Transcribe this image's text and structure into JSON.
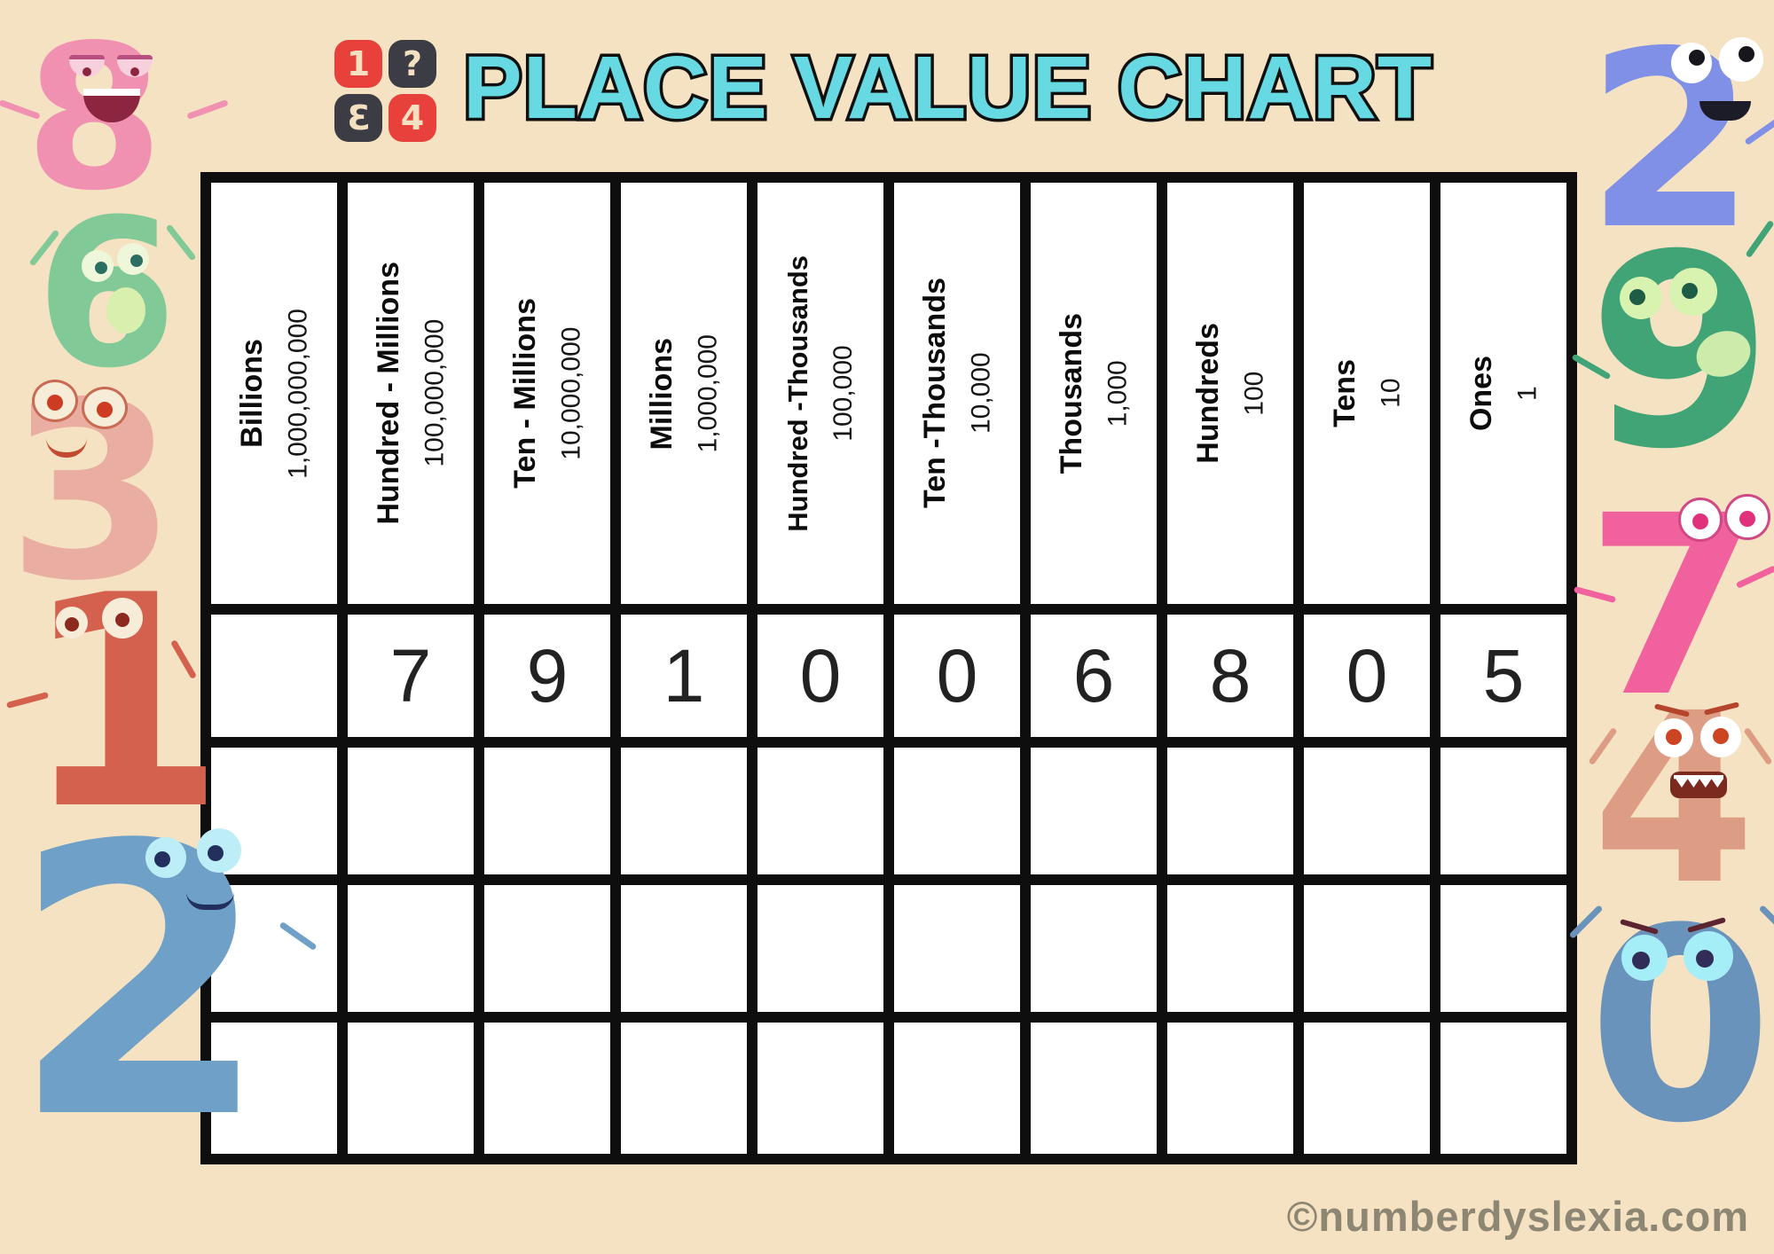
{
  "title": "PLACE VALUE CHART",
  "title_color": "#67d9e3",
  "background_color": "#f4e2c2",
  "logo": {
    "tiles": [
      {
        "char": "1",
        "color": "#e8413c"
      },
      {
        "char": "?",
        "color": "#3c3c44"
      },
      {
        "char": "3",
        "color": "#3c3c44",
        "mirrored": true
      },
      {
        "char": "4",
        "color": "#e8413c"
      }
    ]
  },
  "table": {
    "columns": [
      {
        "name": "Billions",
        "value": "1,000,000,000"
      },
      {
        "name": "Hundred - Millions",
        "value": "100,000,000"
      },
      {
        "name": "Ten - Millions",
        "value": "10,000,000"
      },
      {
        "name": "Millions",
        "value": "1,000,000"
      },
      {
        "name": "Hundred -Thousands",
        "value": "100,000"
      },
      {
        "name": "Ten -Thousands",
        "value": "10,000"
      },
      {
        "name": "Thousands",
        "value": "1,000"
      },
      {
        "name": "Hundreds",
        "value": "100"
      },
      {
        "name": "Tens",
        "value": "10"
      },
      {
        "name": "Ones",
        "value": "1"
      }
    ],
    "digits": [
      "",
      "7",
      "9",
      "1",
      "0",
      "0",
      "6",
      "8",
      "0",
      "5"
    ],
    "empty_row_count": 3
  },
  "decorations": {
    "left": [
      {
        "digit": "8",
        "color": "#f191b1"
      },
      {
        "digit": "6",
        "color": "#82c998"
      },
      {
        "digit": "3",
        "color": "#e9aea1"
      },
      {
        "digit": "1",
        "color": "#d4604e"
      },
      {
        "digit": "2",
        "color": "#6fa0c8"
      }
    ],
    "right": [
      {
        "digit": "2",
        "color": "#8090e6"
      },
      {
        "digit": "9",
        "color": "#41a477"
      },
      {
        "digit": "7",
        "color": "#f0619d"
      },
      {
        "digit": "4",
        "color": "#dd9d85"
      },
      {
        "digit": "0",
        "color": "#6a93bb"
      }
    ]
  },
  "watermark": "©numberdyslexia.com"
}
